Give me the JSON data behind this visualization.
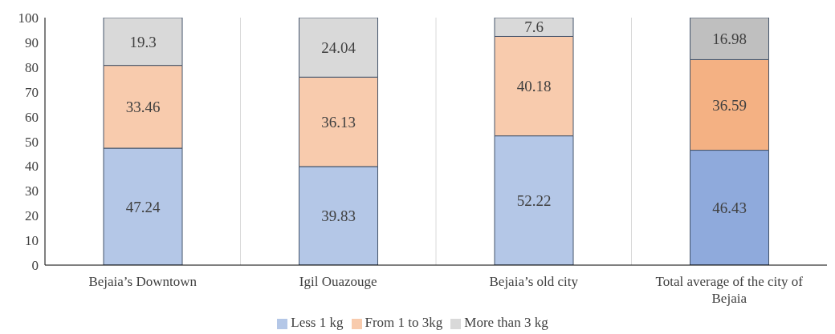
{
  "chart_data": {
    "type": "bar",
    "stacked": true,
    "categories": [
      "Bejaia’s Downtown",
      "Igil Ouazouge",
      "Bejaia’s old city",
      "Total average of the city of Bejaia"
    ],
    "series": [
      {
        "name": "Less 1 kg",
        "color": "#b4c7e7",
        "colors": [
          "#b4c7e7",
          "#b4c7e7",
          "#b4c7e7",
          "#8faadc"
        ],
        "values": [
          47.24,
          39.83,
          52.22,
          46.43
        ]
      },
      {
        "name": "From 1 to 3kg",
        "color": "#f8cbad",
        "colors": [
          "#f8cbad",
          "#f8cbad",
          "#f8cbad",
          "#f4b183"
        ],
        "values": [
          33.46,
          36.13,
          40.18,
          36.59
        ]
      },
      {
        "name": "More than 3 kg",
        "color": "#d9d9d9",
        "colors": [
          "#d9d9d9",
          "#d9d9d9",
          "#d9d9d9",
          "#bfbfbf"
        ],
        "values": [
          19.3,
          24.04,
          7.6,
          16.98
        ]
      }
    ],
    "ylim": [
      0,
      100
    ],
    "yticks": [
      0,
      10,
      20,
      30,
      40,
      50,
      60,
      70,
      80,
      90,
      100
    ],
    "grid": "x",
    "legend": "bottom",
    "data_labels": true
  }
}
